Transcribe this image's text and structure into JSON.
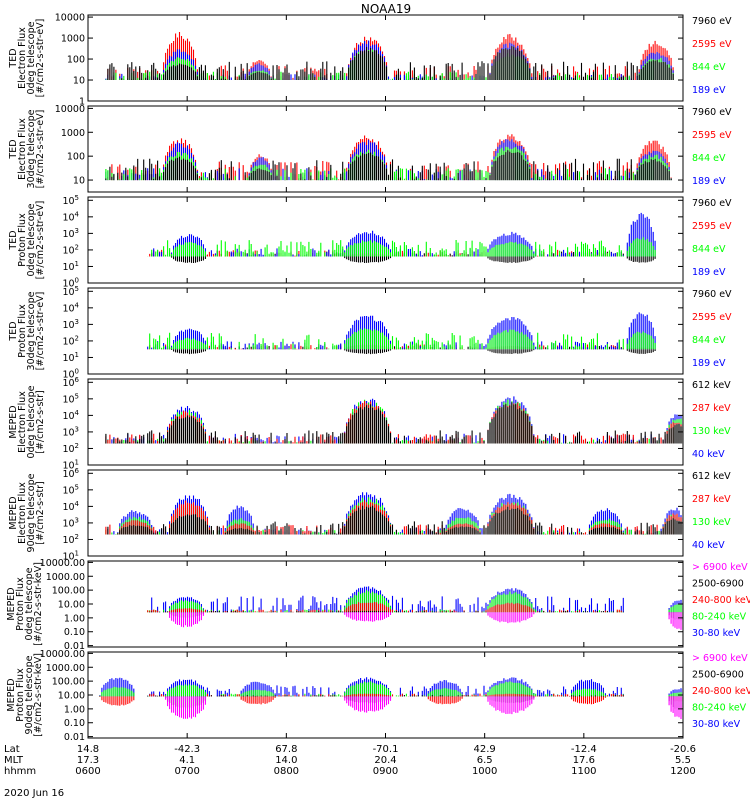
{
  "title": "NOAA19",
  "date_label": "2020 Jun 16",
  "footer": {
    "row_labels": [
      "Lat",
      "MLT",
      "hhmm"
    ],
    "columns": [
      {
        "lat": "14.8",
        "mlt": "17.3",
        "hhmm": "0600"
      },
      {
        "lat": "-42.3",
        "mlt": "4.1",
        "hhmm": "0700"
      },
      {
        "lat": "67.8",
        "mlt": "14.0",
        "hhmm": "0800"
      },
      {
        "lat": "-70.1",
        "mlt": "20.4",
        "hhmm": "0900"
      },
      {
        "lat": "42.9",
        "mlt": "6.5",
        "hhmm": "1000"
      },
      {
        "lat": "-12.4",
        "mlt": "17.6",
        "hhmm": "1100"
      },
      {
        "lat": "-20.6",
        "mlt": "5.5",
        "hhmm": "1200"
      }
    ]
  },
  "colors": {
    "black": "#000000",
    "red": "#ff0000",
    "green": "#00ff00",
    "blue": "#0000ff",
    "magenta": "#ff00ff"
  },
  "chart_data": [
    {
      "type": "line",
      "ylabel": [
        "TED",
        "Electron Flux",
        "0deg telescope",
        "[#/cm2-s-str-eV]"
      ],
      "ticks": [
        [
          "10000",
          4
        ],
        [
          "1000",
          3
        ],
        [
          "100",
          2
        ],
        [
          "10",
          1
        ],
        [
          "1",
          0
        ]
      ],
      "ylim": [
        0,
        4.1
      ],
      "base": 1.0,
      "legend": [
        {
          "label": "7960 eV",
          "color": "black"
        },
        {
          "label": "2595 eV",
          "color": "red"
        },
        {
          "label": "844 eV",
          "color": "green"
        },
        {
          "label": "189 eV",
          "color": "blue"
        }
      ],
      "draw_order": [
        "red",
        "blue",
        "green",
        "black"
      ],
      "events": [
        {
          "center": 0.155,
          "width": 0.03,
          "peaks": {
            "red": 3.3,
            "blue": 2.5,
            "green": 2.1,
            "black": 1.8
          }
        },
        {
          "center": 0.288,
          "width": 0.02,
          "peaks": {
            "red": 2.0,
            "blue": 1.8,
            "green": 1.5,
            "black": 1.4
          }
        },
        {
          "center": 0.47,
          "width": 0.035,
          "peaks": {
            "red": 3.1,
            "blue": 2.9,
            "green": 2.5,
            "black": 2.6
          }
        },
        {
          "center": 0.71,
          "width": 0.035,
          "peaks": {
            "red": 3.2,
            "blue": 2.8,
            "green": 2.3,
            "black": 2.7
          }
        },
        {
          "center": 0.955,
          "width": 0.03,
          "peaks": {
            "red": 2.9,
            "blue": 2.4,
            "green": 2.1,
            "black": 2.0
          }
        }
      ],
      "noise": {
        "black": 0.9,
        "red": 0.7,
        "green": 0.4,
        "blue": 0.3
      },
      "black_noise_extent": [
        0.03,
        0.97
      ]
    },
    {
      "type": "line",
      "ylabel": [
        "TED",
        "Electron Flux",
        "30deg telescope",
        "[#/cm2-s-str-eV]"
      ],
      "ticks": [
        [
          "10000",
          4
        ],
        [
          "1000",
          3
        ],
        [
          "100",
          2
        ],
        [
          "10",
          1
        ]
      ],
      "ylim": [
        0.5,
        4.1
      ],
      "base": 1.0,
      "legend": [
        {
          "label": "7960 eV",
          "color": "black"
        },
        {
          "label": "2595 eV",
          "color": "red"
        },
        {
          "label": "844 eV",
          "color": "green"
        },
        {
          "label": "189 eV",
          "color": "blue"
        }
      ],
      "draw_order": [
        "red",
        "blue",
        "green",
        "black"
      ],
      "events": [
        {
          "center": 0.155,
          "width": 0.03,
          "peaks": {
            "red": 2.8,
            "blue": 2.6,
            "green": 2.2,
            "black": 2.0
          }
        },
        {
          "center": 0.29,
          "width": 0.02,
          "peaks": {
            "red": 2.1,
            "blue": 2.0,
            "green": 1.7,
            "black": 1.5
          }
        },
        {
          "center": 0.47,
          "width": 0.035,
          "peaks": {
            "red": 2.9,
            "blue": 2.7,
            "green": 2.3,
            "black": 2.2
          }
        },
        {
          "center": 0.71,
          "width": 0.035,
          "peaks": {
            "red": 3.0,
            "blue": 2.8,
            "green": 2.5,
            "black": 2.3
          }
        },
        {
          "center": 0.95,
          "width": 0.03,
          "peaks": {
            "red": 2.7,
            "blue": 2.3,
            "green": 2.1,
            "black": 1.9
          }
        }
      ],
      "noise": {
        "black": 0.9,
        "red": 0.8,
        "green": 0.5,
        "blue": 0.5
      },
      "black_noise_extent": [
        0.03,
        0.97
      ]
    },
    {
      "type": "line",
      "ylabel": [
        "TED",
        "Proton Flux",
        "0deg telescope",
        "[#/cm2-s-str-eV]"
      ],
      "ticks": [
        [
          "10^5",
          5
        ],
        [
          "10^4",
          4
        ],
        [
          "10^3",
          3
        ],
        [
          "10^2",
          2
        ],
        [
          "10^1",
          1
        ],
        [
          "10^0",
          0
        ]
      ],
      "ylim": [
        0,
        5.2
      ],
      "base": 1.6,
      "legend": [
        {
          "label": "7960 eV",
          "color": "black"
        },
        {
          "label": "2595 eV",
          "color": "red"
        },
        {
          "label": "844 eV",
          "color": "green"
        },
        {
          "label": "189 eV",
          "color": "blue"
        }
      ],
      "draw_order": [
        "black",
        "red",
        "blue",
        "green"
      ],
      "events": [
        {
          "center": 0.17,
          "width": 0.03,
          "peaks": {
            "blue": 3.0,
            "green": 2.5,
            "red": 1.6,
            "black": 1.2
          }
        },
        {
          "center": 0.47,
          "width": 0.04,
          "peaks": {
            "blue": 3.2,
            "green": 2.6,
            "red": 1.8,
            "black": 1.2
          }
        },
        {
          "center": 0.71,
          "width": 0.04,
          "peaks": {
            "blue": 3.1,
            "green": 2.5,
            "red": 1.6,
            "black": 1.2
          }
        },
        {
          "center": 0.93,
          "width": 0.025,
          "peaks": {
            "blue": 4.3,
            "green": 2.8,
            "red": 1.6,
            "black": 1.2
          }
        }
      ],
      "noise": {
        "green": 1.0,
        "blue": 0.5,
        "red": 0.4,
        "black": 0.3
      },
      "black_noise_extent": [
        0.1,
        0.9
      ]
    },
    {
      "type": "line",
      "ylabel": [
        "TED",
        "Proton Flux",
        "30deg telescope",
        "[#/cm2-s-str-eV]"
      ],
      "ticks": [
        [
          "10^5",
          5
        ],
        [
          "10^4",
          4
        ],
        [
          "10^3",
          3
        ],
        [
          "10^2",
          2
        ],
        [
          "10^1",
          1
        ],
        [
          "10^0",
          0
        ]
      ],
      "ylim": [
        0,
        5.2
      ],
      "base": 1.5,
      "legend": [
        {
          "label": "7960 eV",
          "color": "black"
        },
        {
          "label": "2595 eV",
          "color": "red"
        },
        {
          "label": "844 eV",
          "color": "green"
        },
        {
          "label": "189 eV",
          "color": "blue"
        }
      ],
      "draw_order": [
        "black",
        "red",
        "blue",
        "green"
      ],
      "events": [
        {
          "center": 0.17,
          "width": 0.03,
          "peaks": {
            "blue": 2.8,
            "green": 2.2,
            "red": 1.6,
            "black": 1.2
          }
        },
        {
          "center": 0.47,
          "width": 0.04,
          "peaks": {
            "blue": 3.6,
            "green": 2.8,
            "red": 1.8,
            "black": 1.2
          }
        },
        {
          "center": 0.71,
          "width": 0.04,
          "peaks": {
            "blue": 3.5,
            "green": 2.7,
            "red": 1.7,
            "black": 1.2
          }
        },
        {
          "center": 0.93,
          "width": 0.025,
          "peaks": {
            "blue": 3.8,
            "green": 2.6,
            "red": 1.6,
            "black": 1.2
          }
        }
      ],
      "noise": {
        "green": 1.0,
        "blue": 0.5,
        "red": 0.3,
        "black": 0.2
      },
      "black_noise_extent": [
        0.1,
        0.9
      ]
    },
    {
      "type": "line",
      "ylabel": [
        "MEPED",
        "Electron Flux",
        "0deg telescope",
        "[#/cm2-s-str]"
      ],
      "ticks": [
        [
          "10^6",
          6
        ],
        [
          "10^5",
          5
        ],
        [
          "10^4",
          4
        ],
        [
          "10^3",
          3
        ],
        [
          "10^2",
          2
        ],
        [
          "10^1",
          1
        ]
      ],
      "ylim": [
        1,
        6.2
      ],
      "base": 2.3,
      "legend": [
        {
          "label": "612 keV",
          "color": "black"
        },
        {
          "label": "287 keV",
          "color": "red"
        },
        {
          "label": "130 keV",
          "color": "green"
        },
        {
          "label": "40 keV",
          "color": "blue"
        }
      ],
      "draw_order": [
        "blue",
        "green",
        "red",
        "black"
      ],
      "events": [
        {
          "center": 0.165,
          "width": 0.035,
          "peaks": {
            "blue": 4.6,
            "green": 4.4,
            "red": 4.3,
            "black": 4.1
          }
        },
        {
          "center": 0.47,
          "width": 0.04,
          "peaks": {
            "blue": 5.1,
            "green": 5.0,
            "red": 4.9,
            "black": 4.7
          }
        },
        {
          "center": 0.71,
          "width": 0.04,
          "peaks": {
            "blue": 5.2,
            "green": 5.0,
            "red": 4.9,
            "black": 4.8
          }
        },
        {
          "center": 0.99,
          "width": 0.02,
          "peaks": {
            "blue": 4.2,
            "green": 3.9,
            "red": 3.7,
            "black": 3.5
          }
        }
      ],
      "noise": {
        "black": 0.8,
        "red": 0.6,
        "green": 0.3,
        "blue": 0.6
      },
      "black_noise_extent": [
        0.03,
        0.97
      ]
    },
    {
      "type": "line",
      "ylabel": [
        "MEPED",
        "Electron Flux",
        "90deg telescope",
        "[#/cm2-s-str]"
      ],
      "ticks": [
        [
          "10^6",
          6
        ],
        [
          "10^5",
          5
        ],
        [
          "10^4",
          4
        ],
        [
          "10^3",
          3
        ],
        [
          "10^2",
          2
        ],
        [
          "10^1",
          1
        ]
      ],
      "ylim": [
        1,
        6.2
      ],
      "base": 2.3,
      "legend": [
        {
          "label": "612 keV",
          "color": "black"
        },
        {
          "label": "287 keV",
          "color": "red"
        },
        {
          "label": "130 keV",
          "color": "green"
        },
        {
          "label": "40 keV",
          "color": "blue"
        }
      ],
      "draw_order": [
        "blue",
        "green",
        "red",
        "black"
      ],
      "events": [
        {
          "center": 0.08,
          "width": 0.03,
          "peaks": {
            "blue": 3.8,
            "green": 3.4,
            "red": 3.2,
            "black": 2.9
          }
        },
        {
          "center": 0.17,
          "width": 0.035,
          "peaks": {
            "blue": 4.8,
            "green": 4.2,
            "red": 4.4,
            "black": 3.6
          }
        },
        {
          "center": 0.255,
          "width": 0.025,
          "peaks": {
            "blue": 4.1,
            "green": 3.3,
            "red": 3.0,
            "black": 2.7
          }
        },
        {
          "center": 0.47,
          "width": 0.04,
          "peaks": {
            "blue": 5.0,
            "green": 4.6,
            "red": 4.4,
            "black": 4.1
          }
        },
        {
          "center": 0.63,
          "width": 0.03,
          "peaks": {
            "blue": 4.0,
            "green": 3.4,
            "red": 3.0,
            "black": 2.8
          }
        },
        {
          "center": 0.71,
          "width": 0.04,
          "peaks": {
            "blue": 4.8,
            "green": 4.4,
            "red": 4.3,
            "black": 4.0
          }
        },
        {
          "center": 0.87,
          "width": 0.03,
          "peaks": {
            "blue": 3.9,
            "green": 3.3,
            "red": 3.0,
            "black": 2.8
          }
        },
        {
          "center": 0.985,
          "width": 0.02,
          "peaks": {
            "blue": 4.0,
            "green": 3.6,
            "red": 3.6,
            "black": 3.3
          }
        }
      ],
      "noise": {
        "black": 0.8,
        "red": 0.6,
        "green": 0.3,
        "blue": 0.4
      },
      "black_noise_extent": [
        0.03,
        0.97
      ]
    },
    {
      "type": "line",
      "ylabel": [
        "MEPED",
        "Proton Flux",
        "0deg telescope",
        "[#/cm2-s-str-keV]"
      ],
      "ticks": [
        [
          "10000.00",
          4
        ],
        [
          "1000.00",
          3
        ],
        [
          "100.00",
          2
        ],
        [
          "10.00",
          1
        ],
        [
          "1.00",
          0
        ],
        [
          "0.10",
          -1
        ],
        [
          "0.01",
          -2
        ]
      ],
      "ylim": [
        -2.1,
        4.1
      ],
      "base": 0.4,
      "legend": [
        {
          "label": "> 6900 keV",
          "color": "magenta"
        },
        {
          "label": "2500-6900",
          "color": "black"
        },
        {
          "label": "240-800 keV",
          "color": "red"
        },
        {
          "label": "80-240 keV",
          "color": "green"
        },
        {
          "label": "30-80 keV",
          "color": "blue"
        }
      ],
      "draw_order": [
        "blue",
        "green",
        "red",
        "black",
        "magenta"
      ],
      "events": [
        {
          "center": 0.165,
          "width": 0.03,
          "peaks": {
            "blue": 1.6,
            "green": 1.3,
            "red": 0.7,
            "black": 0.0,
            "magenta": -0.7
          }
        },
        {
          "center": 0.47,
          "width": 0.04,
          "peaks": {
            "blue": 2.3,
            "green": 2.0,
            "red": 1.2,
            "black": 0.5,
            "magenta": -0.3
          }
        },
        {
          "center": 0.71,
          "width": 0.04,
          "peaks": {
            "blue": 2.2,
            "green": 1.9,
            "red": 1.1,
            "black": 0.4,
            "magenta": -0.4
          }
        },
        {
          "center": 0.995,
          "width": 0.02,
          "peaks": {
            "blue": 1.3,
            "green": 1.0,
            "red": 0.4,
            "black": -0.2,
            "magenta": -0.9
          }
        }
      ],
      "noise": {
        "blue": 1.2,
        "green": 0.2,
        "red": 0.2,
        "black": 0.1
      },
      "black_noise_extent": [
        0.1,
        0.9
      ]
    },
    {
      "type": "line",
      "ylabel": [
        "MEPED",
        "Proton Flux",
        "90deg telescope",
        "[#/cm2-s-str-keV]"
      ],
      "ticks": [
        [
          "10000.00",
          4
        ],
        [
          "1000.00",
          3
        ],
        [
          "100.00",
          2
        ],
        [
          "10.00",
          1
        ],
        [
          "1.00",
          0
        ],
        [
          "0.10",
          -1
        ],
        [
          "0.01",
          -2
        ]
      ],
      "ylim": [
        -2.1,
        4.1
      ],
      "base": 0.9,
      "legend": [
        {
          "label": "> 6900 keV",
          "color": "magenta"
        },
        {
          "label": "2500-6900",
          "color": "black"
        },
        {
          "label": "240-800 keV",
          "color": "red"
        },
        {
          "label": "80-240 keV",
          "color": "green"
        },
        {
          "label": "30-80 keV",
          "color": "blue"
        }
      ],
      "draw_order": [
        "blue",
        "green",
        "red",
        "black",
        "magenta"
      ],
      "events": [
        {
          "center": 0.05,
          "width": 0.03,
          "peaks": {
            "blue": 2.3,
            "green": 1.6,
            "red": 0.2
          }
        },
        {
          "center": 0.165,
          "width": 0.035,
          "peaks": {
            "blue": 2.2,
            "green": 1.8,
            "red": 0.9,
            "black": 0.0,
            "magenta": -0.8
          }
        },
        {
          "center": 0.285,
          "width": 0.03,
          "peaks": {
            "blue": 2.0,
            "green": 1.4,
            "red": 0.3
          }
        },
        {
          "center": 0.47,
          "width": 0.04,
          "peaks": {
            "blue": 2.3,
            "green": 2.0,
            "red": 1.1,
            "black": 0.4,
            "magenta": -0.3
          }
        },
        {
          "center": 0.6,
          "width": 0.03,
          "peaks": {
            "blue": 2.1,
            "green": 1.5,
            "red": 0.3
          }
        },
        {
          "center": 0.71,
          "width": 0.04,
          "peaks": {
            "blue": 2.3,
            "green": 2.0,
            "red": 1.1,
            "black": 0.4,
            "magenta": -0.4
          }
        },
        {
          "center": 0.84,
          "width": 0.03,
          "peaks": {
            "blue": 2.2,
            "green": 1.5,
            "red": 0.3
          }
        },
        {
          "center": 0.995,
          "width": 0.02,
          "peaks": {
            "blue": 1.5,
            "green": 1.2,
            "red": 0.5,
            "black": -0.1,
            "magenta": -0.8
          }
        }
      ],
      "noise": {
        "blue": 0.8,
        "green": 0.2,
        "red": 0.2,
        "black": 0.1
      },
      "black_noise_extent": [
        0.1,
        0.9
      ]
    }
  ]
}
